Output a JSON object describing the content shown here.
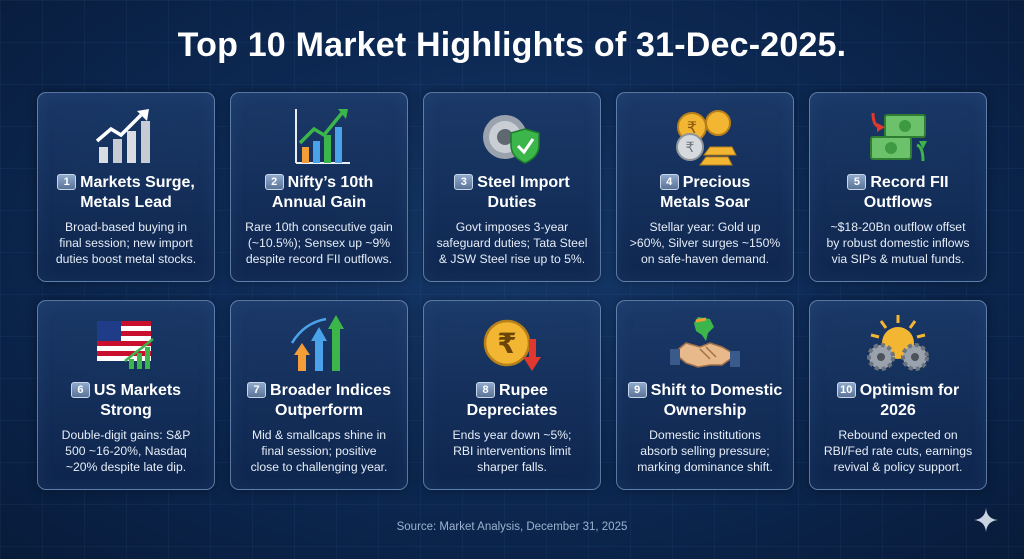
{
  "title": "Top 10 Market Highlights of 31-Dec-2025.",
  "cards": [
    {
      "num": "1",
      "title_l1": "Markets Surge,",
      "title_l2": "Metals Lead",
      "desc": [
        "Broad-based buying in",
        "final session; new import",
        "duties boost metal stocks."
      ],
      "icon": "rising-chart-icon"
    },
    {
      "num": "2",
      "title_l1": "Nifty’s 10th",
      "title_l2": "Annual Gain",
      "desc": [
        "Rare 10th consecutive gain",
        "(~10.5%); Sensex up ~9%",
        "despite record FII outflows."
      ],
      "icon": "bar-chart-arrow-icon"
    },
    {
      "num": "3",
      "title_l1": "Steel Import",
      "title_l2": "Duties",
      "desc": [
        "Govt imposes 3-year",
        "safeguard duties; Tata Steel",
        "& JSW Steel rise up to 5%."
      ],
      "icon": "steel-coil-shield-icon"
    },
    {
      "num": "4",
      "title_l1": "Precious",
      "title_l2": "Metals Soar",
      "desc": [
        "Stellar year: Gold up",
        ">60%, Silver surges ~150%",
        "on safe-haven demand."
      ],
      "icon": "gold-coins-bars-icon"
    },
    {
      "num": "5",
      "title_l1": "Record FII",
      "title_l2": "Outflows",
      "desc": [
        "~$18-20Bn outflow offset",
        "by robust domestic inflows",
        "via SIPs & mutual funds."
      ],
      "icon": "cash-flow-icon"
    },
    {
      "num": "6",
      "title_l1": "US Markets",
      "title_l2": "Strong",
      "desc": [
        "Double-digit gains: S&P",
        "500 ~16-20%, Nasdaq",
        "~20% despite late dip."
      ],
      "icon": "us-flag-chart-icon"
    },
    {
      "num": "7",
      "title_l1": "Broader Indices",
      "title_l2": "Outperform",
      "desc": [
        "Mid & smallcaps shine in",
        "final session; positive",
        "close to challenging year."
      ],
      "icon": "rising-arrows-icon"
    },
    {
      "num": "8",
      "title_l1": "Rupee",
      "title_l2": "Depreciates",
      "desc": [
        "Ends year down ~5%;",
        "RBI interventions limit",
        "sharper falls."
      ],
      "icon": "rupee-down-icon"
    },
    {
      "num": "9",
      "title_l1": "Shift to Domestic",
      "title_l2": "Ownership",
      "desc": [
        "Domestic institutions",
        "absorb selling pressure;",
        "marking dominance shift."
      ],
      "icon": "handshake-india-icon"
    },
    {
      "num": "10",
      "title_l1": "Optimism for",
      "title_l2": "2026",
      "desc": [
        "Rebound expected on",
        "RBI/Fed rate cuts, earnings",
        "revival & policy support."
      ],
      "icon": "sun-gears-icon"
    }
  ],
  "source": "Source: Market Analysis, December 31, 2025",
  "colors": {
    "background": "#0d2a55",
    "card_border": "#96b9e6",
    "green": "#3cb54a",
    "gold": "#f2b632",
    "red": "#e0382f"
  }
}
